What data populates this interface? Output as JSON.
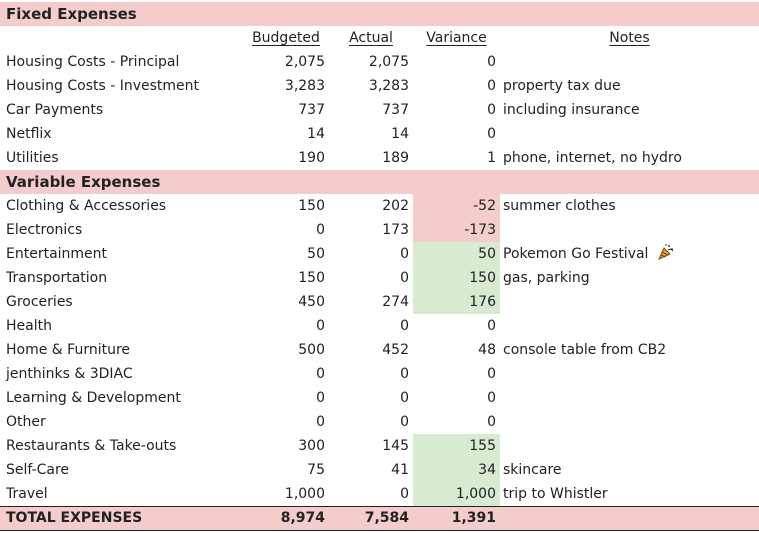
{
  "sections": {
    "fixed_title": "Fixed Expenses",
    "variable_title": "Variable Expenses"
  },
  "headers": {
    "budgeted": "Budgeted",
    "actual": "Actual",
    "variance": "Variance",
    "notes": "Notes"
  },
  "fixed_rows": [
    {
      "label": "Housing Costs - Principal",
      "budgeted": "2,075",
      "actual": "2,075",
      "variance": "0",
      "notes": ""
    },
    {
      "label": "Housing Costs - Investment",
      "budgeted": "3,283",
      "actual": "3,283",
      "variance": "0",
      "notes": "property tax due"
    },
    {
      "label": "Car Payments",
      "budgeted": "737",
      "actual": "737",
      "variance": "0",
      "notes": "including insurance"
    },
    {
      "label": "Netflix",
      "budgeted": "14",
      "actual": "14",
      "variance": "0",
      "notes": ""
    },
    {
      "label": "Utilities",
      "budgeted": "190",
      "actual": "189",
      "variance": "1",
      "notes": "phone, internet, no hydro"
    }
  ],
  "variable_rows": [
    {
      "label": "Clothing & Accessories",
      "budgeted": "150",
      "actual": "202",
      "variance": "-52",
      "notes": "summer clothes",
      "highlight": "negative"
    },
    {
      "label": "Electronics",
      "budgeted": "0",
      "actual": "173",
      "variance": "-173",
      "notes": "",
      "highlight": "negative"
    },
    {
      "label": "Entertainment",
      "budgeted": "50",
      "actual": "0",
      "variance": "50",
      "notes": "Pokemon Go Festival",
      "highlight": "positive"
    },
    {
      "label": "Transportation",
      "budgeted": "150",
      "actual": "0",
      "variance": "150",
      "notes": "gas, parking",
      "highlight": "positive"
    },
    {
      "label": "Groceries",
      "budgeted": "450",
      "actual": "274",
      "variance": "176",
      "notes": "",
      "highlight": "positive"
    },
    {
      "label": "Health",
      "budgeted": "0",
      "actual": "0",
      "variance": "0",
      "notes": ""
    },
    {
      "label": "Home & Furniture",
      "budgeted": "500",
      "actual": "452",
      "variance": "48",
      "notes": "console table from CB2"
    },
    {
      "label": "jenthinks & 3DIAC",
      "budgeted": "0",
      "actual": "0",
      "variance": "0",
      "notes": ""
    },
    {
      "label": "Learning & Development",
      "budgeted": "0",
      "actual": "0",
      "variance": "0",
      "notes": ""
    },
    {
      "label": "Other",
      "budgeted": "0",
      "actual": "0",
      "variance": "0",
      "notes": ""
    },
    {
      "label": "Restaurants & Take-outs",
      "budgeted": "300",
      "actual": "145",
      "variance": "155",
      "notes": "",
      "highlight": "positive"
    },
    {
      "label": "Self-Care",
      "budgeted": "75",
      "actual": "41",
      "variance": "34",
      "notes": "skincare",
      "highlight": "positive"
    },
    {
      "label": "Travel",
      "budgeted": "1,000",
      "actual": "0",
      "variance": "1,000",
      "notes": "trip to Whistler",
      "highlight": "positive"
    }
  ],
  "total": {
    "label": "TOTAL EXPENSES",
    "budgeted": "8,974",
    "actual": "7,584",
    "variance": "1,391"
  },
  "icons": {
    "entertainment_note_icon": "party-popper-icon"
  },
  "colors": {
    "section_background": "#f4cccc",
    "negative_variance": "#f4cccc",
    "positive_variance": "#d9ead3"
  }
}
